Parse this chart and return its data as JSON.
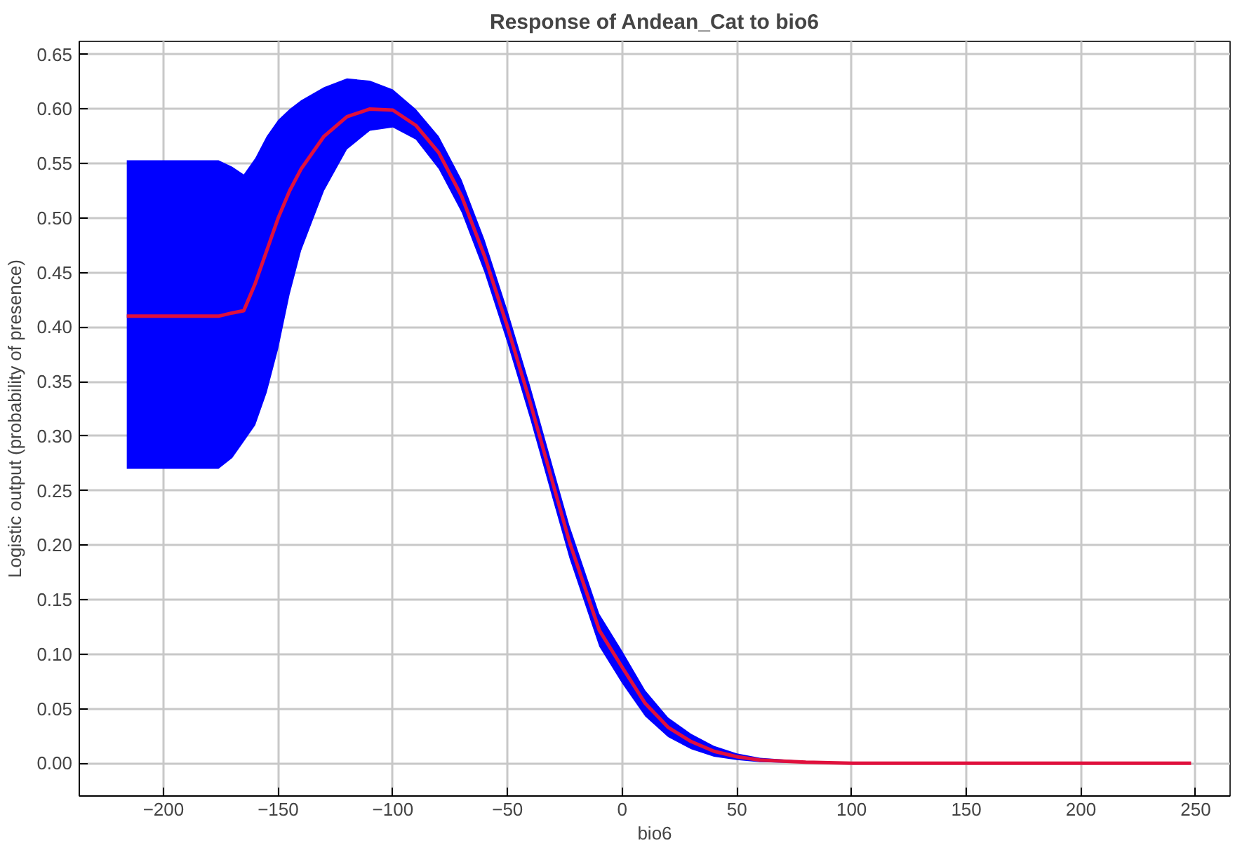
{
  "chart_data": {
    "type": "line",
    "title": "Response of Andean_Cat to bio6",
    "xlabel": "bio6",
    "ylabel": "Logistic output (probability of presence)",
    "x": [
      -216,
      -176,
      -170,
      -165,
      -160,
      -155,
      -150,
      -145,
      -140,
      -130,
      -120,
      -110,
      -100,
      -90,
      -80,
      -70,
      -60,
      -50,
      -40,
      -30,
      -23,
      -10,
      0,
      10,
      20,
      30,
      40,
      50,
      60,
      80,
      100,
      248
    ],
    "series": [
      {
        "color": "#e0103c",
        "values": [
          0.41,
          0.41,
          0.413,
          0.415,
          0.44,
          0.47,
          0.5,
          0.525,
          0.545,
          0.575,
          0.593,
          0.6,
          0.599,
          0.585,
          0.56,
          0.52,
          0.465,
          0.4,
          0.33,
          0.255,
          0.203,
          0.122,
          0.088,
          0.055,
          0.033,
          0.02,
          0.011,
          0.006,
          0.003,
          0.001,
          0.0,
          0.0
        ],
        "lower": [
          0.27,
          0.27,
          0.28,
          0.295,
          0.31,
          0.34,
          0.38,
          0.43,
          0.47,
          0.525,
          0.563,
          0.58,
          0.583,
          0.572,
          0.545,
          0.505,
          0.45,
          0.385,
          0.315,
          0.24,
          0.188,
          0.107,
          0.073,
          0.043,
          0.024,
          0.013,
          0.006,
          0.003,
          0.001,
          0.0,
          0.0,
          0.0
        ],
        "upper": [
          0.553,
          0.553,
          0.547,
          0.54,
          0.555,
          0.575,
          0.59,
          0.6,
          0.608,
          0.62,
          0.628,
          0.626,
          0.618,
          0.6,
          0.575,
          0.535,
          0.48,
          0.415,
          0.345,
          0.27,
          0.218,
          0.137,
          0.103,
          0.067,
          0.042,
          0.027,
          0.016,
          0.009,
          0.005,
          0.002,
          0.0,
          0.0
        ]
      }
    ],
    "xlim": [
      -236.7,
      265
    ],
    "ylim": [
      -0.03,
      0.662
    ],
    "xticks": [
      -200,
      -150,
      -100,
      -50,
      0,
      50,
      100,
      150,
      200,
      250
    ],
    "yticks": [
      {
        "value": 0,
        "label": "0.00"
      },
      {
        "value": 0.05,
        "label": "0.05"
      },
      {
        "value": 0.1,
        "label": "0.10"
      },
      {
        "value": 0.15,
        "label": "0.15"
      },
      {
        "value": 0.2,
        "label": "0.20"
      },
      {
        "value": 0.25,
        "label": "0.25"
      },
      {
        "value": 0.3,
        "label": "0.30"
      },
      {
        "value": 0.35,
        "label": "0.35"
      },
      {
        "value": 0.4,
        "label": "0.40"
      },
      {
        "value": 0.45,
        "label": "0.45"
      },
      {
        "value": 0.5,
        "label": "0.50"
      },
      {
        "value": 0.55,
        "label": "0.55"
      },
      {
        "value": 0.6,
        "label": "0.60"
      },
      {
        "value": 0.65,
        "label": "0.65"
      }
    ],
    "grid": true,
    "line_style": "solid"
  }
}
